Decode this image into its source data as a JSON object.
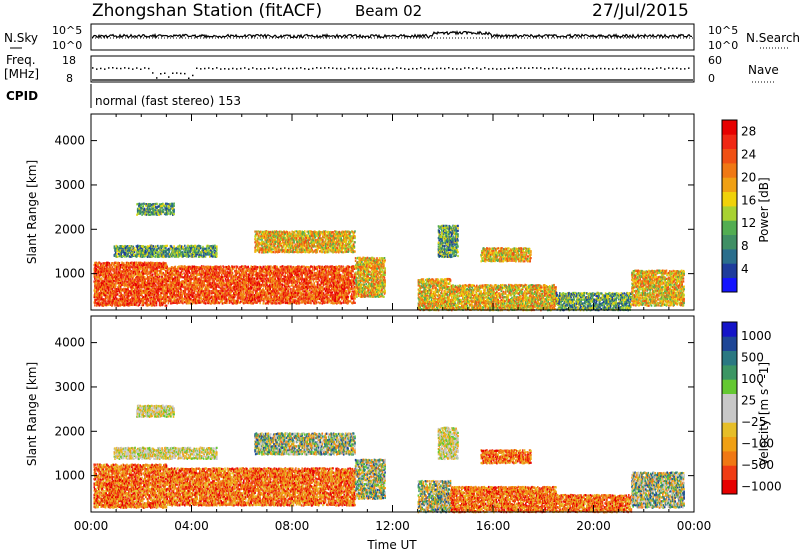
{
  "header": {
    "station": "Zhongshan Station (fitACF)",
    "beam": "Beam 02",
    "date": "27/Jul/2015"
  },
  "noise_panel": {
    "left_label": "N.Sky",
    "right_label": "N.Search",
    "left_ticks": [
      "10^5",
      "10^0"
    ],
    "right_ticks": [
      "10^5",
      "10^0"
    ]
  },
  "freq_panel": {
    "left_label_top": "Freq.",
    "left_label_bottom": "[MHz]",
    "right_label": "Nave",
    "left_ticks": [
      "18",
      "8"
    ],
    "right_ticks": [
      "60",
      "0"
    ]
  },
  "cpid": {
    "label": "CPID",
    "text": "normal (fast stereo) 153"
  },
  "colors": {
    "power_scale": [
      "#1414ff",
      "#1e3c9c",
      "#2a6e8c",
      "#3f8f64",
      "#52ad52",
      "#a8d232",
      "#f0d20a",
      "#f0a014",
      "#f07814",
      "#f05014",
      "#f02814",
      "#e60000"
    ],
    "velocity_scale": [
      "#e60000",
      "#f03c14",
      "#f07814",
      "#f0a014",
      "#e6be28",
      "#c8c8c8",
      "#c8c8c8",
      "#64c832",
      "#3c9664",
      "#2a7882",
      "#1e4696",
      "#1414c8"
    ]
  },
  "chart_data": [
    {
      "type": "heatmap",
      "name": "Power",
      "ylabel": "Slant Range [km]",
      "y_ticks": [
        "1000",
        "2000",
        "3000",
        "4000"
      ],
      "ylim": [
        180,
        4600
      ],
      "x_ticks": [
        "00:00",
        "04:00",
        "08:00",
        "12:00",
        "16:00",
        "20:00",
        "00:00"
      ],
      "xlim_hours": [
        0,
        24
      ],
      "colorbar_label": "Power [dB]",
      "colorbar_ticks": [
        "4",
        "8",
        "12",
        "16",
        "20",
        "24",
        "28"
      ],
      "colorbar_range": [
        0,
        30
      ],
      "scatter_regions_hours_km": [
        {
          "t0": 0.1,
          "t1": 3.0,
          "r0": 300,
          "r1": 1300,
          "level": "high"
        },
        {
          "t0": 3.0,
          "t1": 10.5,
          "r0": 350,
          "r1": 1200,
          "level": "high"
        },
        {
          "t0": 10.5,
          "t1": 11.7,
          "r0": 500,
          "r1": 1400,
          "level": "mid"
        },
        {
          "t0": 0.9,
          "t1": 5.0,
          "r0": 1400,
          "r1": 1650,
          "level": "low"
        },
        {
          "t0": 1.8,
          "t1": 3.3,
          "r0": 2350,
          "r1": 2600,
          "level": "low"
        },
        {
          "t0": 6.5,
          "t1": 10.5,
          "r0": 1500,
          "r1": 2000,
          "level": "mid"
        },
        {
          "t0": 13.0,
          "t1": 14.3,
          "r0": 200,
          "r1": 900,
          "level": "mid"
        },
        {
          "t0": 14.3,
          "t1": 18.5,
          "r0": 200,
          "r1": 800,
          "level": "mid"
        },
        {
          "t0": 18.5,
          "t1": 21.5,
          "r0": 200,
          "r1": 600,
          "level": "low"
        },
        {
          "t0": 21.5,
          "t1": 23.6,
          "r0": 300,
          "r1": 1100,
          "level": "mid"
        },
        {
          "t0": 13.8,
          "t1": 14.6,
          "r0": 1400,
          "r1": 2100,
          "level": "low"
        },
        {
          "t0": 15.5,
          "t1": 17.5,
          "r0": 1300,
          "r1": 1600,
          "level": "mid"
        }
      ]
    },
    {
      "type": "heatmap",
      "name": "Velocity",
      "ylabel": "Slant Range [km]",
      "y_ticks": [
        "1000",
        "2000",
        "3000",
        "4000"
      ],
      "ylim": [
        180,
        4600
      ],
      "x_ticks": [
        "00:00",
        "04:00",
        "08:00",
        "12:00",
        "16:00",
        "20:00",
        "00:00"
      ],
      "xlim_hours": [
        0,
        24
      ],
      "xlabel": "Time UT",
      "colorbar_label": "Velocity [m s^-1]",
      "colorbar_ticks": [
        "1000",
        "500",
        "100",
        "25",
        "−25",
        "−100",
        "−500",
        "−1000"
      ],
      "scatter_regions_hours_km": [
        {
          "t0": 0.1,
          "t1": 3.0,
          "r0": 300,
          "r1": 1300,
          "level": "neg"
        },
        {
          "t0": 3.0,
          "t1": 10.5,
          "r0": 350,
          "r1": 1200,
          "level": "neg"
        },
        {
          "t0": 10.5,
          "t1": 11.7,
          "r0": 500,
          "r1": 1400,
          "level": "mix"
        },
        {
          "t0": 0.9,
          "t1": 5.0,
          "r0": 1400,
          "r1": 1650,
          "level": "zero"
        },
        {
          "t0": 1.8,
          "t1": 3.3,
          "r0": 2350,
          "r1": 2600,
          "level": "zero"
        },
        {
          "t0": 6.5,
          "t1": 10.5,
          "r0": 1500,
          "r1": 2000,
          "level": "mix"
        },
        {
          "t0": 13.0,
          "t1": 14.3,
          "r0": 200,
          "r1": 900,
          "level": "mix"
        },
        {
          "t0": 14.3,
          "t1": 18.5,
          "r0": 200,
          "r1": 800,
          "level": "neg"
        },
        {
          "t0": 18.5,
          "t1": 21.5,
          "r0": 200,
          "r1": 600,
          "level": "neg"
        },
        {
          "t0": 21.5,
          "t1": 23.6,
          "r0": 300,
          "r1": 1100,
          "level": "mix"
        },
        {
          "t0": 13.8,
          "t1": 14.6,
          "r0": 1400,
          "r1": 2100,
          "level": "zero"
        },
        {
          "t0": 15.5,
          "t1": 17.5,
          "r0": 1300,
          "r1": 1600,
          "level": "neg"
        }
      ]
    }
  ]
}
